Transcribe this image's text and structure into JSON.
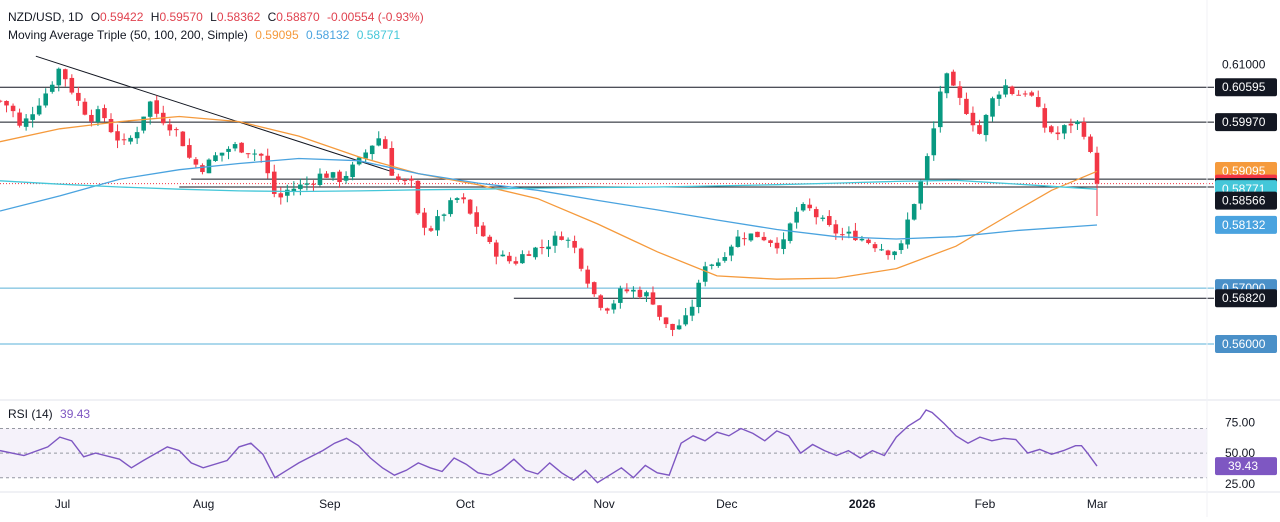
{
  "legend": {
    "symbol": "NZD/USD, 1D",
    "o_label": "O",
    "o_value": "0.59422",
    "h_label": "H",
    "h_value": "0.59570",
    "l_label": "L",
    "l_value": "0.58362",
    "c_label": "C",
    "c_value": "0.58870",
    "change": "-0.00554 (-0.93%)",
    "ma_label": "Moving Average Triple (50, 100, 200, Simple)",
    "ma50_value": "0.59095",
    "ma100_value": "0.58132",
    "ma200_value": "0.58771",
    "rsi_label": "RSI (14)",
    "rsi_value": "39.43"
  },
  "colors": {
    "up": "#089981",
    "down": "#f23645",
    "ma50": "#f59a3c",
    "ma100": "#4aa3df",
    "ma200": "#45c7d9",
    "rsi": "#7e57c2",
    "hline_black": "#131722",
    "hline_blue": "#5ab0d8"
  },
  "chart_data": [
    {
      "type": "candlestick",
      "title": "NZD/USD, 1D",
      "y_axis_ticks": [
        "0.61000"
      ],
      "x_labels": [
        "Jul",
        "Aug",
        "Sep",
        "Oct",
        "Nov",
        "Dec",
        "2026",
        "Feb",
        "Mar"
      ],
      "ylim": [
        0.555,
        0.6135
      ],
      "last_close": 0.5887,
      "price_labels": [
        {
          "text": "0.60595",
          "value": 0.60595,
          "style": "black"
        },
        {
          "text": "0.59970",
          "value": 0.5997,
          "style": "black"
        },
        {
          "text": "0.59095",
          "value": 0.59095,
          "style": "ma50"
        },
        {
          "text": "0.58870",
          "value": 0.5887,
          "style": "down"
        },
        {
          "text": "0.58810",
          "value": 0.5881,
          "style": "black"
        },
        {
          "text": "0.58771",
          "value": 0.58771,
          "style": "ma200"
        },
        {
          "text": "0.58566",
          "value": 0.58566,
          "style": "black"
        },
        {
          "text": "0.58132",
          "value": 0.58132,
          "style": "ma100"
        },
        {
          "text": "0.57000",
          "value": 0.57,
          "style": "blue"
        },
        {
          "text": "0.56820",
          "value": 0.5682,
          "style": "black"
        },
        {
          "text": "0.56000",
          "value": 0.56,
          "style": "blue"
        }
      ],
      "horizontal_levels": [
        {
          "value": 0.60595,
          "kind": "black",
          "from": 0
        },
        {
          "value": 0.5997,
          "kind": "black",
          "from": 0
        },
        {
          "value": 0.5895,
          "kind": "black",
          "from": 0.16
        },
        {
          "value": 0.5881,
          "kind": "black",
          "from": 0.15
        },
        {
          "value": 0.57,
          "kind": "blue",
          "from": 0
        },
        {
          "value": 0.5682,
          "kind": "black",
          "from": 0.43
        },
        {
          "value": 0.56,
          "kind": "blue",
          "from": 0
        }
      ],
      "trendline": [
        [
          0.03,
          0.6115
        ],
        [
          0.33,
          0.5907
        ]
      ],
      "series": [
        {
          "name": "Moving Average 50",
          "points": [
            [
              0.0,
              0.5962
            ],
            [
              0.05,
              0.5985
            ],
            [
              0.1,
              0.5998
            ],
            [
              0.15,
              0.6007
            ],
            [
              0.2,
              0.5998
            ],
            [
              0.25,
              0.5972
            ],
            [
              0.3,
              0.5935
            ],
            [
              0.35,
              0.5905
            ],
            [
              0.4,
              0.5885
            ],
            [
              0.45,
              0.586
            ],
            [
              0.5,
              0.5815
            ],
            [
              0.55,
              0.5765
            ],
            [
              0.6,
              0.5722
            ],
            [
              0.65,
              0.5716
            ],
            [
              0.7,
              0.5718
            ],
            [
              0.75,
              0.5735
            ],
            [
              0.8,
              0.5775
            ],
            [
              0.85,
              0.5838
            ],
            [
              0.88,
              0.5875
            ],
            [
              0.918,
              0.5909
            ]
          ]
        },
        {
          "name": "Moving Average 100",
          "points": [
            [
              0.0,
              0.5838
            ],
            [
              0.05,
              0.5865
            ],
            [
              0.1,
              0.5895
            ],
            [
              0.15,
              0.5912
            ],
            [
              0.2,
              0.5923
            ],
            [
              0.25,
              0.5932
            ],
            [
              0.3,
              0.5928
            ],
            [
              0.35,
              0.5905
            ],
            [
              0.4,
              0.5888
            ],
            [
              0.45,
              0.5875
            ],
            [
              0.5,
              0.5857
            ],
            [
              0.55,
              0.584
            ],
            [
              0.6,
              0.5822
            ],
            [
              0.65,
              0.5805
            ],
            [
              0.7,
              0.5792
            ],
            [
              0.75,
              0.5788
            ],
            [
              0.8,
              0.5792
            ],
            [
              0.85,
              0.5803
            ],
            [
              0.918,
              0.5813
            ]
          ]
        },
        {
          "name": "Moving Average 200",
          "points": [
            [
              0.0,
              0.5892
            ],
            [
              0.05,
              0.5886
            ],
            [
              0.1,
              0.5881
            ],
            [
              0.15,
              0.5877
            ],
            [
              0.2,
              0.5874
            ],
            [
              0.25,
              0.5873
            ],
            [
              0.3,
              0.5874
            ],
            [
              0.35,
              0.5876
            ],
            [
              0.4,
              0.5877
            ],
            [
              0.45,
              0.5879
            ],
            [
              0.5,
              0.588
            ],
            [
              0.55,
              0.5881
            ],
            [
              0.6,
              0.5883
            ],
            [
              0.65,
              0.5885
            ],
            [
              0.7,
              0.5888
            ],
            [
              0.75,
              0.5891
            ],
            [
              0.8,
              0.5893
            ],
            [
              0.918,
              0.5877
            ]
          ]
        }
      ],
      "ohlc_pivots": [
        [
          0.0,
          0.6035
        ],
        [
          0.01,
          0.6022
        ],
        [
          0.015,
          0.5985
        ],
        [
          0.02,
          0.5995
        ],
        [
          0.03,
          0.6025
        ],
        [
          0.04,
          0.6055
        ],
        [
          0.05,
          0.6095
        ],
        [
          0.055,
          0.6075
        ],
        [
          0.065,
          0.6035
        ],
        [
          0.075,
          0.6005
        ],
        [
          0.085,
          0.6015
        ],
        [
          0.095,
          0.5975
        ],
        [
          0.105,
          0.5955
        ],
        [
          0.115,
          0.5985
        ],
        [
          0.125,
          0.6035
        ],
        [
          0.13,
          0.6015
        ],
        [
          0.14,
          0.5995
        ],
        [
          0.15,
          0.5975
        ],
        [
          0.16,
          0.5925
        ],
        [
          0.17,
          0.5915
        ],
        [
          0.18,
          0.5935
        ],
        [
          0.195,
          0.5955
        ],
        [
          0.21,
          0.5945
        ],
        [
          0.22,
          0.5935
        ],
        [
          0.225,
          0.5895
        ],
        [
          0.232,
          0.5855
        ],
        [
          0.24,
          0.5875
        ],
        [
          0.255,
          0.5885
        ],
        [
          0.27,
          0.5905
        ],
        [
          0.285,
          0.5895
        ],
        [
          0.3,
          0.5925
        ],
        [
          0.31,
          0.5955
        ],
        [
          0.32,
          0.5975
        ],
        [
          0.325,
          0.5925
        ],
        [
          0.33,
          0.5895
        ],
        [
          0.345,
          0.5885
        ],
        [
          0.35,
          0.5825
        ],
        [
          0.36,
          0.5805
        ],
        [
          0.375,
          0.5845
        ],
        [
          0.385,
          0.5865
        ],
        [
          0.395,
          0.5825
        ],
        [
          0.41,
          0.5775
        ],
        [
          0.42,
          0.5755
        ],
        [
          0.43,
          0.5745
        ],
        [
          0.44,
          0.5765
        ],
        [
          0.455,
          0.5775
        ],
        [
          0.47,
          0.5795
        ],
        [
          0.48,
          0.5775
        ],
        [
          0.49,
          0.5725
        ],
        [
          0.5,
          0.5675
        ],
        [
          0.51,
          0.5665
        ],
        [
          0.52,
          0.5695
        ],
        [
          0.53,
          0.5695
        ],
        [
          0.545,
          0.5685
        ],
        [
          0.555,
          0.5635
        ],
        [
          0.562,
          0.5625
        ],
        [
          0.575,
          0.5645
        ],
        [
          0.585,
          0.5705
        ],
        [
          0.59,
          0.5745
        ],
        [
          0.6,
          0.5745
        ],
        [
          0.61,
          0.5775
        ],
        [
          0.62,
          0.5795
        ],
        [
          0.635,
          0.5795
        ],
        [
          0.645,
          0.5785
        ],
        [
          0.655,
          0.5775
        ],
        [
          0.665,
          0.5835
        ],
        [
          0.675,
          0.5845
        ],
        [
          0.685,
          0.5825
        ],
        [
          0.695,
          0.5805
        ],
        [
          0.705,
          0.5795
        ],
        [
          0.715,
          0.5795
        ],
        [
          0.725,
          0.5785
        ],
        [
          0.735,
          0.5775
        ],
        [
          0.745,
          0.5765
        ],
        [
          0.755,
          0.5775
        ],
        [
          0.76,
          0.5825
        ],
        [
          0.77,
          0.5885
        ],
        [
          0.78,
          0.5965
        ],
        [
          0.785,
          0.6035
        ],
        [
          0.79,
          0.6085
        ],
        [
          0.8,
          0.6045
        ],
        [
          0.81,
          0.6015
        ],
        [
          0.82,
          0.5975
        ],
        [
          0.83,
          0.6035
        ],
        [
          0.84,
          0.6065
        ],
        [
          0.85,
          0.6045
        ],
        [
          0.86,
          0.6055
        ],
        [
          0.865,
          0.6035
        ],
        [
          0.875,
          0.5985
        ],
        [
          0.885,
          0.5975
        ],
        [
          0.895,
          0.5995
        ],
        [
          0.905,
          0.5995
        ],
        [
          0.912,
          0.5942
        ],
        [
          0.918,
          0.5887
        ]
      ]
    },
    {
      "type": "line",
      "title": "RSI (14)",
      "y_axis_ticks": [
        "75.00",
        "50.00",
        "25.00"
      ],
      "ylim": [
        20,
        85
      ],
      "band": [
        30,
        70
      ],
      "last_value": 39.43,
      "series": [
        {
          "name": "RSI (14)",
          "points": [
            [
              0.0,
              52
            ],
            [
              0.02,
              48
            ],
            [
              0.04,
              55
            ],
            [
              0.05,
              63
            ],
            [
              0.06,
              60
            ],
            [
              0.07,
              47
            ],
            [
              0.08,
              50
            ],
            [
              0.1,
              45
            ],
            [
              0.11,
              38
            ],
            [
              0.12,
              44
            ],
            [
              0.14,
              55
            ],
            [
              0.15,
              52
            ],
            [
              0.16,
              42
            ],
            [
              0.17,
              38
            ],
            [
              0.19,
              44
            ],
            [
              0.2,
              55
            ],
            [
              0.21,
              58
            ],
            [
              0.22,
              49
            ],
            [
              0.23,
              30
            ],
            [
              0.24,
              36
            ],
            [
              0.25,
              42
            ],
            [
              0.26,
              47
            ],
            [
              0.27,
              52
            ],
            [
              0.28,
              58
            ],
            [
              0.29,
              62
            ],
            [
              0.3,
              56
            ],
            [
              0.31,
              46
            ],
            [
              0.32,
              38
            ],
            [
              0.33,
              32
            ],
            [
              0.34,
              36
            ],
            [
              0.35,
              42
            ],
            [
              0.36,
              38
            ],
            [
              0.37,
              35
            ],
            [
              0.38,
              46
            ],
            [
              0.39,
              41
            ],
            [
              0.4,
              34
            ],
            [
              0.41,
              32
            ],
            [
              0.42,
              37
            ],
            [
              0.43,
              45
            ],
            [
              0.44,
              36
            ],
            [
              0.45,
              33
            ],
            [
              0.46,
              42
            ],
            [
              0.47,
              34
            ],
            [
              0.48,
              28
            ],
            [
              0.49,
              36
            ],
            [
              0.5,
              26
            ],
            [
              0.51,
              32
            ],
            [
              0.52,
              38
            ],
            [
              0.53,
              30
            ],
            [
              0.54,
              40
            ],
            [
              0.55,
              34
            ],
            [
              0.56,
              32
            ],
            [
              0.57,
              58
            ],
            [
              0.58,
              64
            ],
            [
              0.59,
              60
            ],
            [
              0.6,
              67
            ],
            [
              0.61,
              64
            ],
            [
              0.62,
              70
            ],
            [
              0.63,
              66
            ],
            [
              0.64,
              60
            ],
            [
              0.65,
              68
            ],
            [
              0.66,
              64
            ],
            [
              0.67,
              50
            ],
            [
              0.68,
              57
            ],
            [
              0.69,
              52
            ],
            [
              0.7,
              48
            ],
            [
              0.71,
              52
            ],
            [
              0.72,
              46
            ],
            [
              0.73,
              52
            ],
            [
              0.74,
              48
            ],
            [
              0.75,
              63
            ],
            [
              0.76,
              72
            ],
            [
              0.77,
              78
            ],
            [
              0.775,
              85
            ],
            [
              0.78,
              83
            ],
            [
              0.79,
              74
            ],
            [
              0.8,
              64
            ],
            [
              0.81,
              58
            ],
            [
              0.82,
              63
            ],
            [
              0.83,
              60
            ],
            [
              0.84,
              62
            ],
            [
              0.85,
              61
            ],
            [
              0.86,
              50
            ],
            [
              0.87,
              53
            ],
            [
              0.88,
              49
            ],
            [
              0.89,
              52
            ],
            [
              0.9,
              56
            ],
            [
              0.905,
              56
            ],
            [
              0.91,
              50
            ],
            [
              0.918,
              39.43
            ]
          ]
        }
      ]
    }
  ]
}
